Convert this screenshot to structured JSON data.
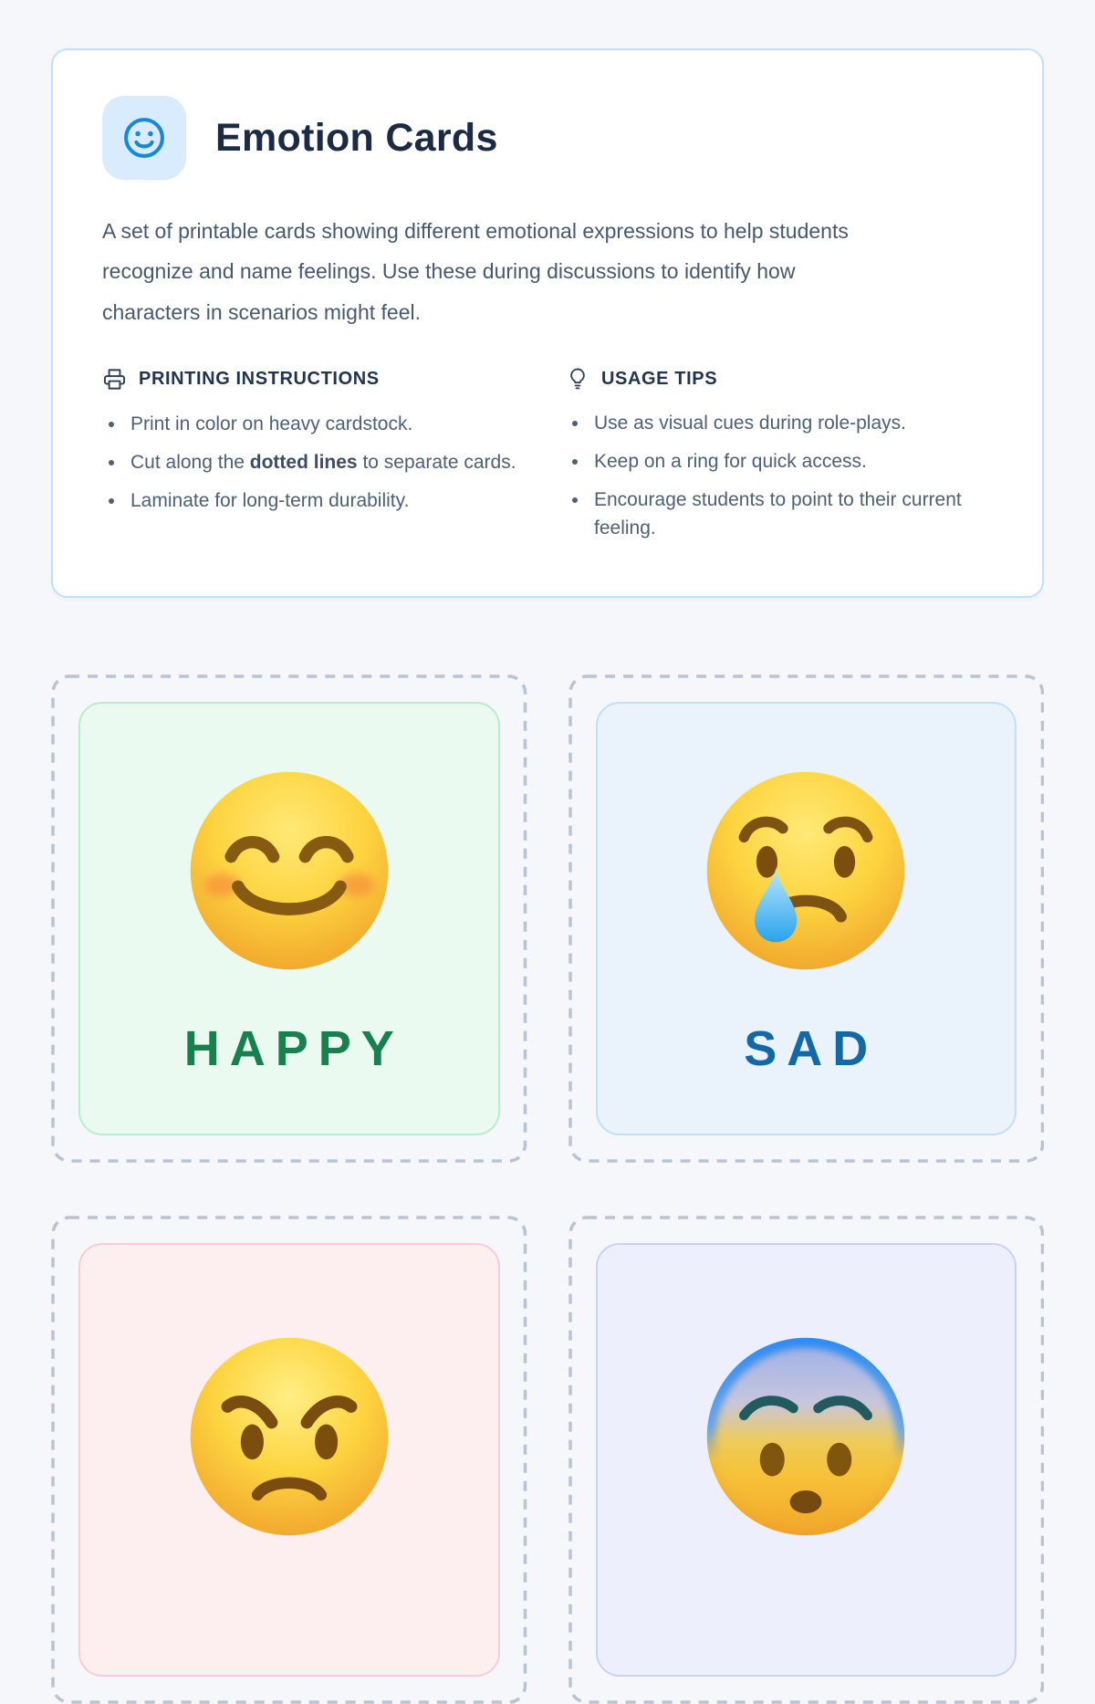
{
  "theme": {
    "page_bg": "#f5f7fa",
    "accent_blue": "#1588d8",
    "header_border": "#bee3f8",
    "icon_tile_bg": "#d8ecfe",
    "title_color": "#1c2b45",
    "body_text_color": "#47596f",
    "dash_color": "#b9c3d2"
  },
  "header": {
    "icon": "smiley-icon",
    "title": "Emotion Cards",
    "description": "A set of printable cards showing different emotional expressions to help students recognize and name feelings. Use these during discussions to identify how characters in scenarios might feel.",
    "sections": [
      {
        "icon": "printer-icon",
        "title": "PRINTING INSTRUCTIONS",
        "items": [
          [
            {
              "t": "Print in color on heavy cardstock.",
              "b": false
            }
          ],
          [
            {
              "t": "Cut along the ",
              "b": false
            },
            {
              "t": "dotted lines",
              "b": true
            },
            {
              "t": " to separate cards.",
              "b": false
            }
          ],
          [
            {
              "t": "Laminate for long-term durability.",
              "b": false
            }
          ]
        ]
      },
      {
        "icon": "lightbulb-icon",
        "title": "USAGE TIPS",
        "items": [
          [
            {
              "t": "Use as visual cues during role-plays.",
              "b": false
            }
          ],
          [
            {
              "t": "Keep on a ring for quick access.",
              "b": false
            }
          ],
          [
            {
              "t": "Encourage students to point to their current feeling.",
              "b": false
            }
          ]
        ]
      }
    ]
  },
  "cards": [
    {
      "emotion": "happy",
      "emoji": "smiling-face-with-smiling-eyes",
      "label": "HAPPY",
      "colors": {
        "bg": "#eafaf0",
        "border": "#b9ecca",
        "label": "#17804d"
      }
    },
    {
      "emotion": "sad",
      "emoji": "crying-face",
      "label": "SAD",
      "colors": {
        "bg": "#eaf2fb",
        "border": "#bfe0f8",
        "label": "#1368a8"
      }
    },
    {
      "emotion": "angry",
      "emoji": "angry-face",
      "label": "",
      "colors": {
        "bg": "#fdeef0",
        "border": "#f8ccd3"
      }
    },
    {
      "emotion": "fearful",
      "emoji": "fearful-face",
      "label": "",
      "colors": {
        "bg": "#edf0fc",
        "border": "#c8d2f4"
      }
    }
  ]
}
